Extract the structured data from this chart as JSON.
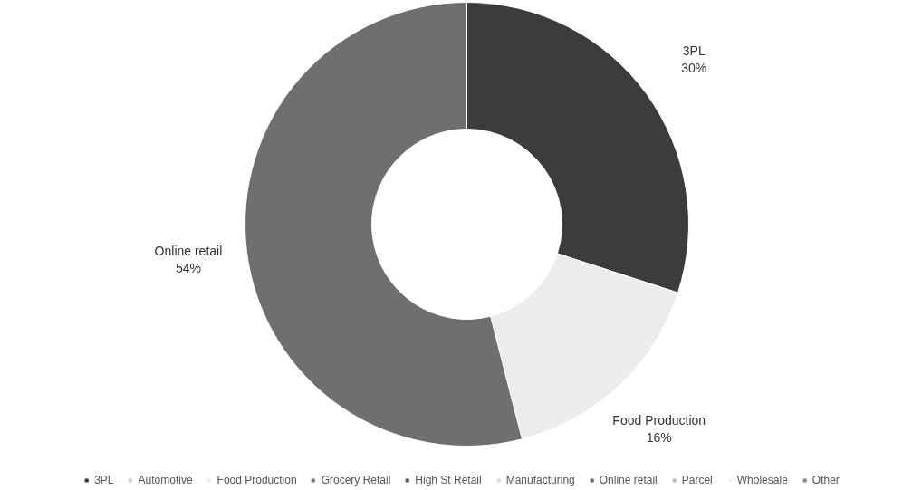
{
  "chart_data": {
    "type": "donut",
    "categories": [
      "3PL",
      "Automotive",
      "Food Production",
      "Grocery Retail",
      "High St Retail",
      "Manufacturing",
      "Online retail",
      "Parcel",
      "Wholesale",
      "Other"
    ],
    "values": [
      30,
      0,
      16,
      0,
      0,
      0,
      54,
      0,
      0,
      0
    ],
    "colors": [
      "#3c3c3c",
      "#cfcfcf",
      "#ececec",
      "#7a7a7a",
      "#5a5a5a",
      "#dcdcdc",
      "#6f6f6f",
      "#bdbdbd",
      "#f2f2f2",
      "#8a8a8a"
    ],
    "value_labels": [
      "30%",
      null,
      "16%",
      null,
      null,
      null,
      "54%",
      null,
      null,
      null
    ],
    "legend": "bottom"
  }
}
